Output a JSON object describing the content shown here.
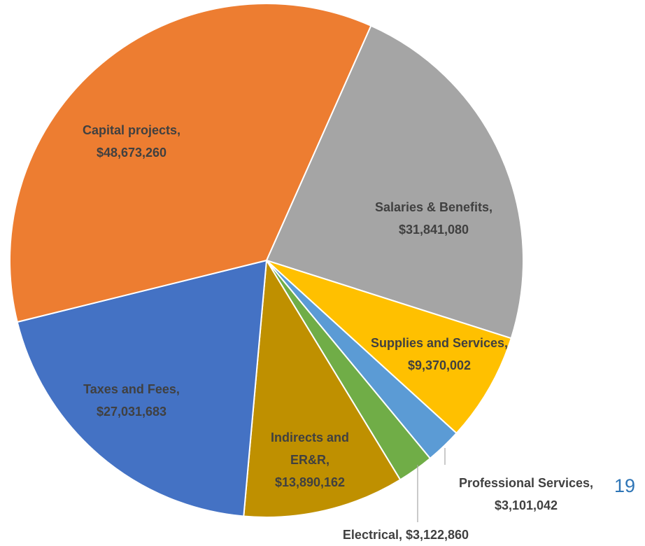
{
  "chart_data": {
    "type": "pie",
    "values": [
      31841080,
      9370002,
      3101042,
      3122860,
      13890162,
      27031683,
      48673260
    ],
    "value_labels": [
      [
        "Salaries & Benefits,",
        "$31,841,080"
      ],
      [
        "Supplies and Services,",
        "$9,370,002"
      ],
      [
        "Professional Services,",
        "$3,101,042"
      ],
      [
        "Electrical, $3,122,860"
      ],
      [
        "Indirects and",
        "ER&R,",
        "$13,890,162"
      ],
      [
        "Taxes and Fees,",
        "$27,031,683"
      ],
      [
        "Capital projects,",
        "$48,673,260"
      ]
    ],
    "colors": [
      "#a5a5a5",
      "#ffc000",
      "#5b9bd5",
      "#70ad47",
      "#bf9000",
      "#4472c4",
      "#ed7d31"
    ],
    "page_number": "19"
  }
}
